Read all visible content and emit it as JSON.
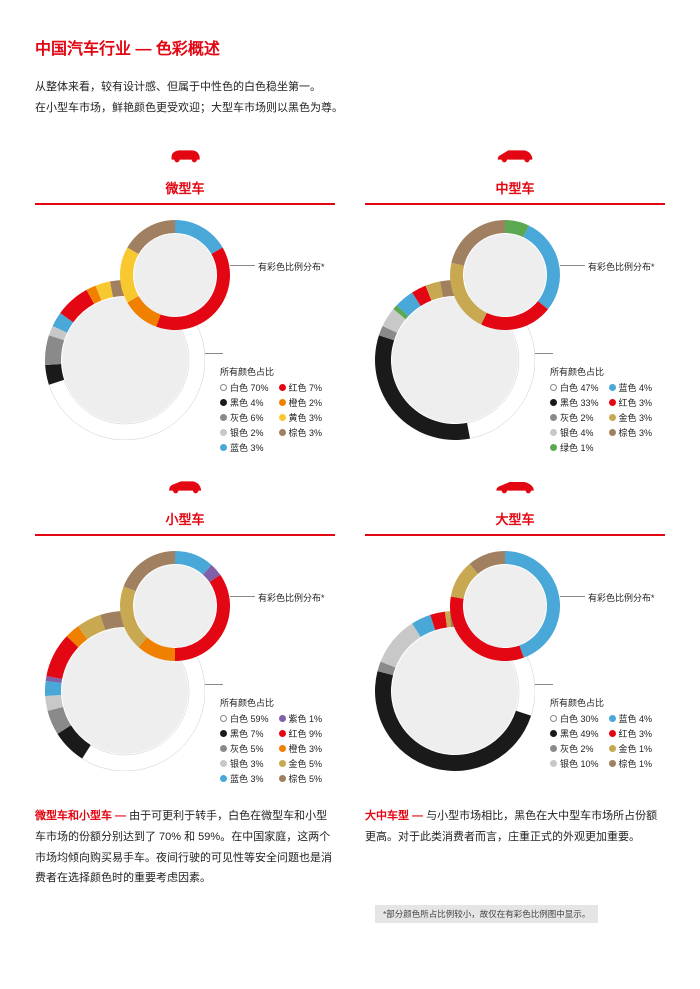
{
  "title": "中国汽车行业 — 色彩概述",
  "intro_line1": "从整体来看，较有设计感、但属于中性色的白色稳坐第一。",
  "intro_line2": "在小型车市场，鲜艳颜色更受欢迎；大型车市场则以黑色为尊。",
  "colors": {
    "accent": "#e30613",
    "white": "#ffffff",
    "black": "#1a1a1a",
    "grey": "#8a8a8a",
    "silver": "#c8c8c8",
    "blue": "#4aa8d8",
    "red": "#e30613",
    "orange": "#f08000",
    "yellow": "#f8c830",
    "brown": "#a08060",
    "gold": "#c8a850",
    "green": "#5aa850",
    "purple": "#8060a8",
    "inner_fill": "#eeeeee",
    "ring_border": "#cccccc"
  },
  "label_small": "有彩色比例分布*",
  "label_large": "所有颜色占比",
  "panels": [
    {
      "title": "微型车",
      "car": "micro",
      "all": [
        {
          "name": "白色",
          "pct": 70,
          "color": "white",
          "ring": true
        },
        {
          "name": "黑色",
          "pct": 4,
          "color": "black"
        },
        {
          "name": "灰色",
          "pct": 6,
          "color": "grey"
        },
        {
          "name": "银色",
          "pct": 2,
          "color": "silver"
        },
        {
          "name": "蓝色",
          "pct": 3,
          "color": "blue"
        },
        {
          "name": "红色",
          "pct": 7,
          "color": "red"
        },
        {
          "name": "橙色",
          "pct": 2,
          "color": "orange"
        },
        {
          "name": "黄色",
          "pct": 3,
          "color": "yellow"
        },
        {
          "name": "棕色",
          "pct": 3,
          "color": "brown"
        }
      ],
      "legend_cols": [
        [
          "白色 70%",
          "黑色 4%",
          "灰色 6%",
          "银色 2%",
          "蓝色 3%"
        ],
        [
          "红色 7%",
          "橙色 2%",
          "黄色 3%",
          "棕色 3%"
        ]
      ],
      "legend_colors": [
        [
          "white",
          "black",
          "grey",
          "silver",
          "blue"
        ],
        [
          "red",
          "orange",
          "yellow",
          "brown"
        ]
      ]
    },
    {
      "title": "中型车",
      "car": "mid",
      "all": [
        {
          "name": "白色",
          "pct": 47,
          "color": "white",
          "ring": true
        },
        {
          "name": "黑色",
          "pct": 33,
          "color": "black"
        },
        {
          "name": "灰色",
          "pct": 2,
          "color": "grey"
        },
        {
          "name": "银色",
          "pct": 4,
          "color": "silver"
        },
        {
          "name": "绿色",
          "pct": 1,
          "color": "green"
        },
        {
          "name": "蓝色",
          "pct": 4,
          "color": "blue"
        },
        {
          "name": "红色",
          "pct": 3,
          "color": "red"
        },
        {
          "name": "金色",
          "pct": 3,
          "color": "gold"
        },
        {
          "name": "棕色",
          "pct": 3,
          "color": "brown"
        }
      ],
      "legend_cols": [
        [
          "白色 47%",
          "黑色 33%",
          "灰色 2%",
          "银色 4%",
          "绿色 1%"
        ],
        [
          "蓝色 4%",
          "红色 3%",
          "金色 3%",
          "棕色 3%"
        ]
      ],
      "legend_colors": [
        [
          "white",
          "black",
          "grey",
          "silver",
          "green"
        ],
        [
          "blue",
          "red",
          "gold",
          "brown"
        ]
      ]
    },
    {
      "title": "小型车",
      "car": "small",
      "all": [
        {
          "name": "白色",
          "pct": 59,
          "color": "white",
          "ring": true
        },
        {
          "name": "黑色",
          "pct": 7,
          "color": "black"
        },
        {
          "name": "灰色",
          "pct": 5,
          "color": "grey"
        },
        {
          "name": "银色",
          "pct": 3,
          "color": "silver"
        },
        {
          "name": "蓝色",
          "pct": 3,
          "color": "blue"
        },
        {
          "name": "紫色",
          "pct": 1,
          "color": "purple"
        },
        {
          "name": "红色",
          "pct": 9,
          "color": "red"
        },
        {
          "name": "橙色",
          "pct": 3,
          "color": "orange"
        },
        {
          "name": "金色",
          "pct": 5,
          "color": "gold"
        },
        {
          "name": "棕色",
          "pct": 5,
          "color": "brown"
        }
      ],
      "legend_cols": [
        [
          "白色 59%",
          "黑色 7%",
          "灰色 5%",
          "银色 3%",
          "蓝色 3%"
        ],
        [
          "紫色 1%",
          "红色 9%",
          "橙色 3%",
          "金色 5%",
          "棕色 5%"
        ]
      ],
      "legend_colors": [
        [
          "white",
          "black",
          "grey",
          "silver",
          "blue"
        ],
        [
          "purple",
          "red",
          "orange",
          "gold",
          "brown"
        ]
      ]
    },
    {
      "title": "大型车",
      "car": "large",
      "all": [
        {
          "name": "白色",
          "pct": 30,
          "color": "white",
          "ring": true
        },
        {
          "name": "黑色",
          "pct": 49,
          "color": "black"
        },
        {
          "name": "灰色",
          "pct": 2,
          "color": "grey"
        },
        {
          "name": "银色",
          "pct": 10,
          "color": "silver"
        },
        {
          "name": "蓝色",
          "pct": 4,
          "color": "blue"
        },
        {
          "name": "红色",
          "pct": 3,
          "color": "red"
        },
        {
          "name": "金色",
          "pct": 1,
          "color": "gold"
        },
        {
          "name": "棕色",
          "pct": 1,
          "color": "brown"
        }
      ],
      "legend_cols": [
        [
          "白色 30%",
          "黑色 49%",
          "灰色 2%",
          "银色 10%"
        ],
        [
          "蓝色 4%",
          "红色 3%",
          "金色 1%",
          "棕色 1%"
        ]
      ],
      "legend_colors": [
        [
          "white",
          "black",
          "grey",
          "silver"
        ],
        [
          "blue",
          "red",
          "gold",
          "brown"
        ]
      ]
    }
  ],
  "bottom": {
    "left_lead": "微型车和小型车 — ",
    "left_body": "由于可更利于转手，白色在微型车和小型车市场的份额分别达到了 70% 和 59%。在中国家庭，这两个市场均倾向购买易手车。夜间行驶的可见性等安全问题也是消费者在选择颜色时的重要考虑因素。",
    "right_lead": "大中车型 — ",
    "right_body": "与小型市场相比，黑色在大中型车市场所占份额更高。对于此类消费者而言，庄重正式的外观更加重要。"
  },
  "footnote": "*部分颜色所占比例较小，故仅在有彩色比例图中显示。"
}
